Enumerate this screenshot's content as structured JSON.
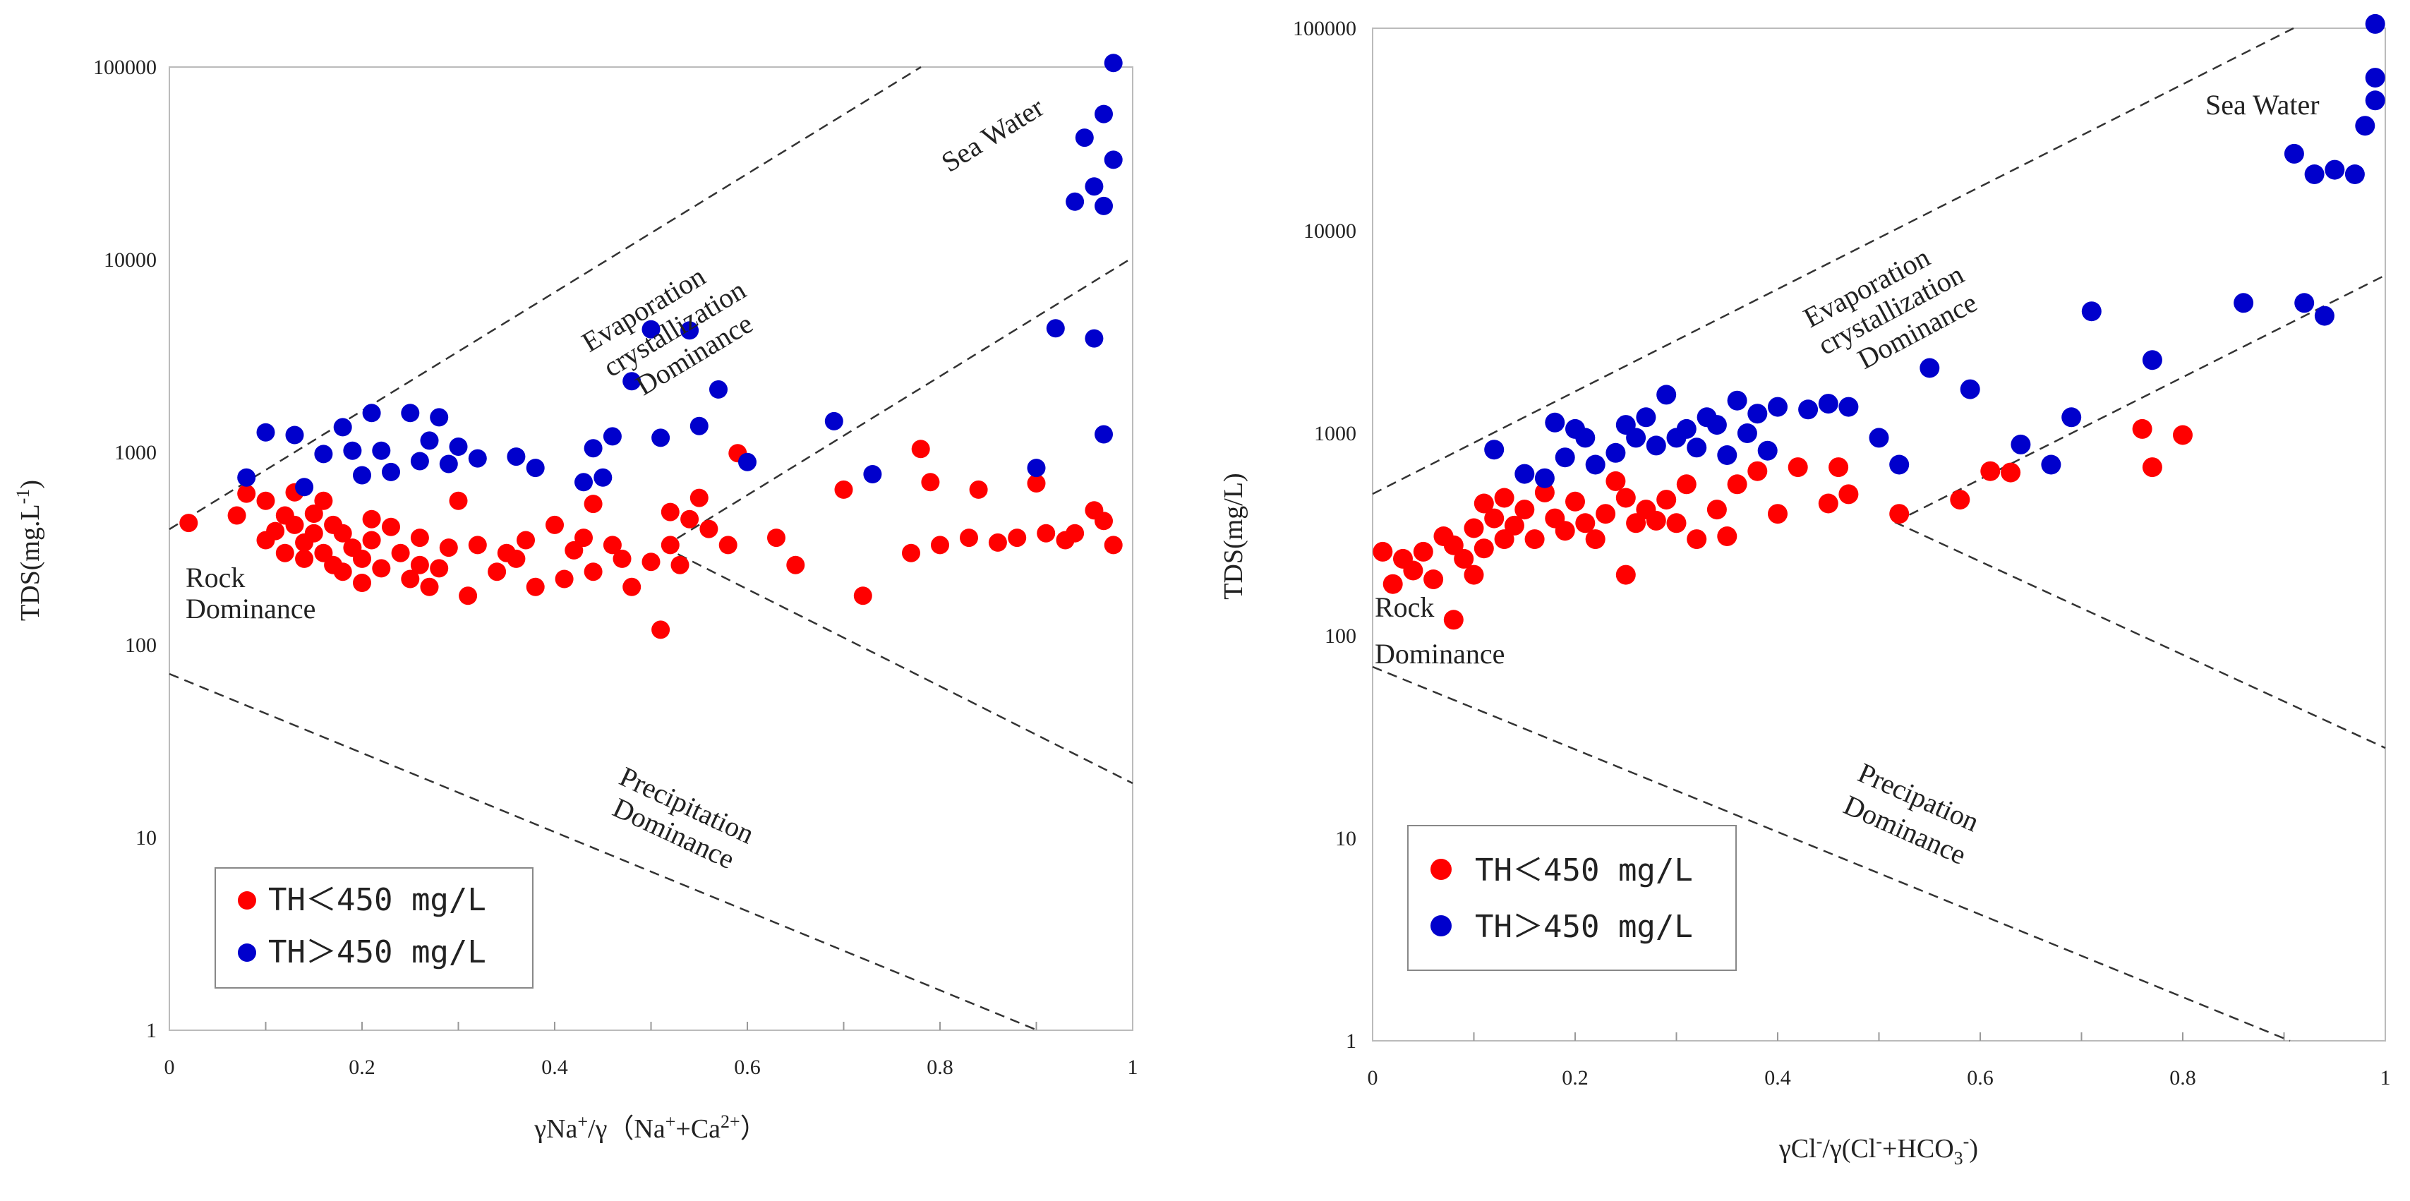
{
  "colors": {
    "red": "#ff0000",
    "blue": "#0000cc",
    "dash": "#333333"
  },
  "chart_data": [
    {
      "type": "scatter",
      "title": "",
      "xlabel": "γNa⁺/γ（Na⁺+Ca²⁺）",
      "ylabel": "TDS(mg.L⁻¹)",
      "xlim": [
        0,
        1
      ],
      "ylim": [
        1,
        100000
      ],
      "yscale": "log",
      "x_ticks": [
        "0",
        "0.2",
        "0.4",
        "0.6",
        "0.8",
        "1"
      ],
      "y_ticks": [
        "1",
        "10",
        "100",
        "1000",
        "10000",
        "100000"
      ],
      "annotations": {
        "sea": "Sea Water",
        "evap1": "Evaporation",
        "evap2": "crystallization",
        "evap3": "Dominance",
        "rock1": "Rock",
        "rock2": "Dominance",
        "precip1": "Precipitation",
        "precip2": "Dominance"
      },
      "legend": {
        "position": "bottom-left",
        "red": "TH＜450 mg/L",
        "blue": "TH＞450 mg/L"
      },
      "series": [
        {
          "name": "TH＜450 mg/L",
          "color": "#ff0000",
          "points": [
            [
              0.02,
              430
            ],
            [
              0.07,
              470
            ],
            [
              0.08,
              610
            ],
            [
              0.1,
              560
            ],
            [
              0.1,
              350
            ],
            [
              0.11,
              390
            ],
            [
              0.12,
              300
            ],
            [
              0.12,
              470
            ],
            [
              0.13,
              620
            ],
            [
              0.13,
              420
            ],
            [
              0.14,
              280
            ],
            [
              0.14,
              340
            ],
            [
              0.15,
              480
            ],
            [
              0.15,
              380
            ],
            [
              0.16,
              560
            ],
            [
              0.16,
              300
            ],
            [
              0.17,
              260
            ],
            [
              0.17,
              420
            ],
            [
              0.18,
              380
            ],
            [
              0.18,
              240
            ],
            [
              0.19,
              320
            ],
            [
              0.2,
              280
            ],
            [
              0.2,
              210
            ],
            [
              0.21,
              450
            ],
            [
              0.21,
              350
            ],
            [
              0.22,
              250
            ],
            [
              0.23,
              410
            ],
            [
              0.24,
              300
            ],
            [
              0.25,
              220
            ],
            [
              0.26,
              360
            ],
            [
              0.26,
              260
            ],
            [
              0.27,
              200
            ],
            [
              0.28,
              250
            ],
            [
              0.29,
              320
            ],
            [
              0.3,
              560
            ],
            [
              0.31,
              180
            ],
            [
              0.32,
              330
            ],
            [
              0.34,
              240
            ],
            [
              0.35,
              300
            ],
            [
              0.36,
              280
            ],
            [
              0.37,
              350
            ],
            [
              0.38,
              200
            ],
            [
              0.4,
              420
            ],
            [
              0.41,
              220
            ],
            [
              0.42,
              310
            ],
            [
              0.43,
              360
            ],
            [
              0.44,
              240
            ],
            [
              0.44,
              540
            ],
            [
              0.46,
              330
            ],
            [
              0.47,
              280
            ],
            [
              0.48,
              200
            ],
            [
              0.5,
              270
            ],
            [
              0.51,
              120
            ],
            [
              0.52,
              490
            ],
            [
              0.52,
              330
            ],
            [
              0.53,
              260
            ],
            [
              0.54,
              450
            ],
            [
              0.55,
              580
            ],
            [
              0.56,
              400
            ],
            [
              0.58,
              330
            ],
            [
              0.59,
              990
            ],
            [
              0.63,
              360
            ],
            [
              0.65,
              260
            ],
            [
              0.7,
              640
            ],
            [
              0.72,
              180
            ],
            [
              0.77,
              300
            ],
            [
              0.78,
              1040
            ],
            [
              0.79,
              700
            ],
            [
              0.8,
              330
            ],
            [
              0.83,
              360
            ],
            [
              0.84,
              640
            ],
            [
              0.86,
              340
            ],
            [
              0.88,
              360
            ],
            [
              0.9,
              690
            ],
            [
              0.91,
              380
            ],
            [
              0.93,
              350
            ],
            [
              0.94,
              380
            ],
            [
              0.96,
              500
            ],
            [
              0.97,
              440
            ],
            [
              0.98,
              330
            ]
          ]
        },
        {
          "name": "TH＞450 mg/L",
          "color": "#0000cc",
          "points": [
            [
              0.08,
              740
            ],
            [
              0.1,
              1270
            ],
            [
              0.13,
              1230
            ],
            [
              0.14,
              660
            ],
            [
              0.16,
              980
            ],
            [
              0.18,
              1350
            ],
            [
              0.19,
              1020
            ],
            [
              0.2,
              760
            ],
            [
              0.21,
              1600
            ],
            [
              0.22,
              1020
            ],
            [
              0.23,
              790
            ],
            [
              0.25,
              1600
            ],
            [
              0.26,
              900
            ],
            [
              0.27,
              1150
            ],
            [
              0.28,
              1520
            ],
            [
              0.29,
              870
            ],
            [
              0.3,
              1070
            ],
            [
              0.32,
              930
            ],
            [
              0.36,
              950
            ],
            [
              0.38,
              830
            ],
            [
              0.43,
              700
            ],
            [
              0.44,
              1050
            ],
            [
              0.45,
              740
            ],
            [
              0.46,
              1210
            ],
            [
              0.48,
              2340
            ],
            [
              0.5,
              4350
            ],
            [
              0.51,
              1190
            ],
            [
              0.54,
              4290
            ],
            [
              0.55,
              1370
            ],
            [
              0.57,
              2120
            ],
            [
              0.6,
              890
            ],
            [
              0.69,
              1450
            ],
            [
              0.73,
              770
            ],
            [
              0.9,
              830
            ],
            [
              0.92,
              4400
            ],
            [
              0.94,
              20000
            ],
            [
              0.95,
              43000
            ],
            [
              0.96,
              3900
            ],
            [
              0.96,
              24000
            ],
            [
              0.97,
              57000
            ],
            [
              0.97,
              19000
            ],
            [
              0.97,
              1240
            ],
            [
              0.98,
              105000
            ],
            [
              0.98,
              33000
            ]
          ]
        }
      ]
    },
    {
      "type": "scatter",
      "title": "",
      "xlabel": "γCl⁻/γ(Cl⁻+HCO₃⁻)",
      "ylabel": "TDS(mg/L)",
      "xlim": [
        0,
        1
      ],
      "ylim": [
        1,
        100000
      ],
      "yscale": "log",
      "x_ticks": [
        "0",
        "0.2",
        "0.4",
        "0.6",
        "0.8",
        "1"
      ],
      "y_ticks": [
        "1",
        "10",
        "100",
        "1000",
        "10000",
        "100000"
      ],
      "annotations": {
        "sea": "Sea Water",
        "evap1": "Evaporation",
        "evap2": "crystallization",
        "evap3": "Dominance",
        "rock1": "Rock",
        "rock2": "Dominance",
        "precip1": "Precipation",
        "precip2": "Dominance"
      },
      "legend": {
        "position": "bottom-left",
        "red": "TH＜450 mg/L",
        "blue": "TH＞450 mg/L"
      },
      "series": [
        {
          "name": "TH＜450 mg/L",
          "color": "#ff0000",
          "points": [
            [
              0.01,
              260
            ],
            [
              0.02,
              180
            ],
            [
              0.03,
              240
            ],
            [
              0.04,
              210
            ],
            [
              0.05,
              260
            ],
            [
              0.06,
              190
            ],
            [
              0.07,
              310
            ],
            [
              0.08,
              120
            ],
            [
              0.08,
              280
            ],
            [
              0.09,
              240
            ],
            [
              0.1,
              200
            ],
            [
              0.1,
              340
            ],
            [
              0.11,
              270
            ],
            [
              0.11,
              450
            ],
            [
              0.12,
              380
            ],
            [
              0.13,
              300
            ],
            [
              0.13,
              480
            ],
            [
              0.14,
              350
            ],
            [
              0.15,
              420
            ],
            [
              0.16,
              300
            ],
            [
              0.17,
              510
            ],
            [
              0.18,
              380
            ],
            [
              0.19,
              330
            ],
            [
              0.2,
              460
            ],
            [
              0.21,
              360
            ],
            [
              0.22,
              300
            ],
            [
              0.23,
              400
            ],
            [
              0.24,
              580
            ],
            [
              0.25,
              480
            ],
            [
              0.25,
              200
            ],
            [
              0.26,
              360
            ],
            [
              0.27,
              420
            ],
            [
              0.28,
              370
            ],
            [
              0.29,
              470
            ],
            [
              0.3,
              360
            ],
            [
              0.31,
              560
            ],
            [
              0.32,
              300
            ],
            [
              0.34,
              420
            ],
            [
              0.35,
              310
            ],
            [
              0.36,
              560
            ],
            [
              0.38,
              650
            ],
            [
              0.4,
              400
            ],
            [
              0.42,
              680
            ],
            [
              0.45,
              450
            ],
            [
              0.46,
              680
            ],
            [
              0.47,
              500
            ],
            [
              0.52,
              400
            ],
            [
              0.58,
              470
            ],
            [
              0.61,
              650
            ],
            [
              0.63,
              640
            ],
            [
              0.76,
              1050
            ],
            [
              0.77,
              680
            ],
            [
              0.8,
              980
            ]
          ]
        },
        {
          "name": "TH＞450 mg/L",
          "color": "#0000cc",
          "points": [
            [
              0.12,
              830
            ],
            [
              0.15,
              630
            ],
            [
              0.17,
              600
            ],
            [
              0.18,
              1130
            ],
            [
              0.19,
              760
            ],
            [
              0.2,
              1050
            ],
            [
              0.21,
              950
            ],
            [
              0.22,
              700
            ],
            [
              0.24,
              800
            ],
            [
              0.25,
              1100
            ],
            [
              0.26,
              950
            ],
            [
              0.27,
              1200
            ],
            [
              0.28,
              870
            ],
            [
              0.29,
              1550
            ],
            [
              0.3,
              950
            ],
            [
              0.31,
              1050
            ],
            [
              0.32,
              850
            ],
            [
              0.33,
              1200
            ],
            [
              0.34,
              1100
            ],
            [
              0.35,
              780
            ],
            [
              0.36,
              1450
            ],
            [
              0.37,
              1000
            ],
            [
              0.38,
              1250
            ],
            [
              0.39,
              820
            ],
            [
              0.4,
              1350
            ],
            [
              0.43,
              1310
            ],
            [
              0.45,
              1400
            ],
            [
              0.47,
              1350
            ],
            [
              0.5,
              950
            ],
            [
              0.52,
              700
            ],
            [
              0.55,
              2100
            ],
            [
              0.59,
              1650
            ],
            [
              0.64,
              880
            ],
            [
              0.67,
              700
            ],
            [
              0.69,
              1200
            ],
            [
              0.71,
              4000
            ],
            [
              0.77,
              2300
            ],
            [
              0.86,
              4400
            ],
            [
              0.91,
              24000
            ],
            [
              0.92,
              4400
            ],
            [
              0.93,
              19000
            ],
            [
              0.94,
              3800
            ],
            [
              0.95,
              20000
            ],
            [
              0.97,
              19000
            ],
            [
              0.98,
              33000
            ],
            [
              0.99,
              44000
            ],
            [
              0.99,
              57000
            ],
            [
              0.99,
              105000
            ]
          ]
        }
      ]
    }
  ]
}
